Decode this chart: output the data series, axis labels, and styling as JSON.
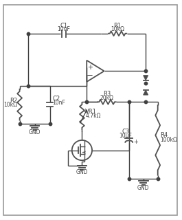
{
  "line_color": "#404040",
  "comp_color": "#505050",
  "fig_w": 2.65,
  "fig_h": 3.2,
  "dpi": 100,
  "border": [
    3,
    3,
    259,
    314
  ],
  "labels": {
    "C1": "C1",
    "C1_val": "10nF",
    "R1": "R1",
    "R1_val": "10kΩ",
    "C2": "C2",
    "C2_val": "10nF",
    "R2": "R2",
    "R2_val": "10kΩ",
    "R3": "R3",
    "R3_val": "20kΩ",
    "VR1": "VR1",
    "VR1_val": "4.7kΩ",
    "C3": "C3",
    "C3_val": "10μF",
    "R4": "R4",
    "R4_val": "100kΩ",
    "GND1": "GND",
    "GND2": "GND",
    "GND3": "GND"
  }
}
